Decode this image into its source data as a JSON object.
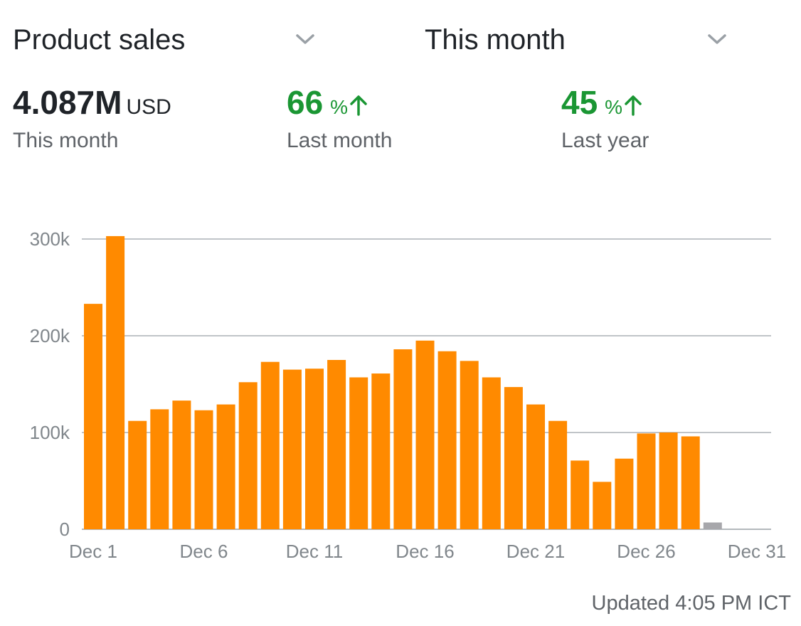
{
  "header": {
    "metric_label": "Product sales",
    "period_label": "This month"
  },
  "stats": {
    "total": {
      "value": "4.087M",
      "unit": "USD",
      "label": "This month"
    },
    "vs_last_month": {
      "value": "66",
      "unit": "%",
      "label": "Last month",
      "trend": "up"
    },
    "vs_last_year": {
      "value": "45",
      "unit": "%",
      "label": "Last year",
      "trend": "up"
    }
  },
  "footer": {
    "updated_text": "Updated 4:05 PM ICT"
  },
  "colors": {
    "bar": "#ff8a00",
    "bar_partial": "#a7a7ab",
    "positive": "#1a9633",
    "grid": "#9aa0a6"
  },
  "chart_data": {
    "type": "bar",
    "title": "",
    "xlabel": "",
    "ylabel": "",
    "ylim": [
      0,
      300000
    ],
    "yticks": [
      0,
      100000,
      200000,
      300000
    ],
    "ytick_labels": [
      "0",
      "100k",
      "200k",
      "300k"
    ],
    "xtick_labels": [
      "Dec 1",
      "Dec 6",
      "Dec 11",
      "Dec 16",
      "Dec 21",
      "Dec 26",
      "Dec 31"
    ],
    "xtick_days": [
      1,
      6,
      11,
      16,
      21,
      26,
      31
    ],
    "grid": true,
    "days": [
      1,
      2,
      3,
      4,
      5,
      6,
      7,
      8,
      9,
      10,
      11,
      12,
      13,
      14,
      15,
      16,
      17,
      18,
      19,
      20,
      21,
      22,
      23,
      24,
      25,
      26,
      27,
      28,
      29,
      30,
      31
    ],
    "values": [
      233000,
      303000,
      112000,
      124000,
      133000,
      123000,
      129000,
      152000,
      173000,
      165000,
      166000,
      175000,
      157000,
      161000,
      186000,
      195000,
      184000,
      174000,
      157000,
      147000,
      129000,
      112000,
      71000,
      49000,
      73000,
      99000,
      100000,
      96000,
      7000,
      0,
      0
    ],
    "partial_day": 29
  }
}
